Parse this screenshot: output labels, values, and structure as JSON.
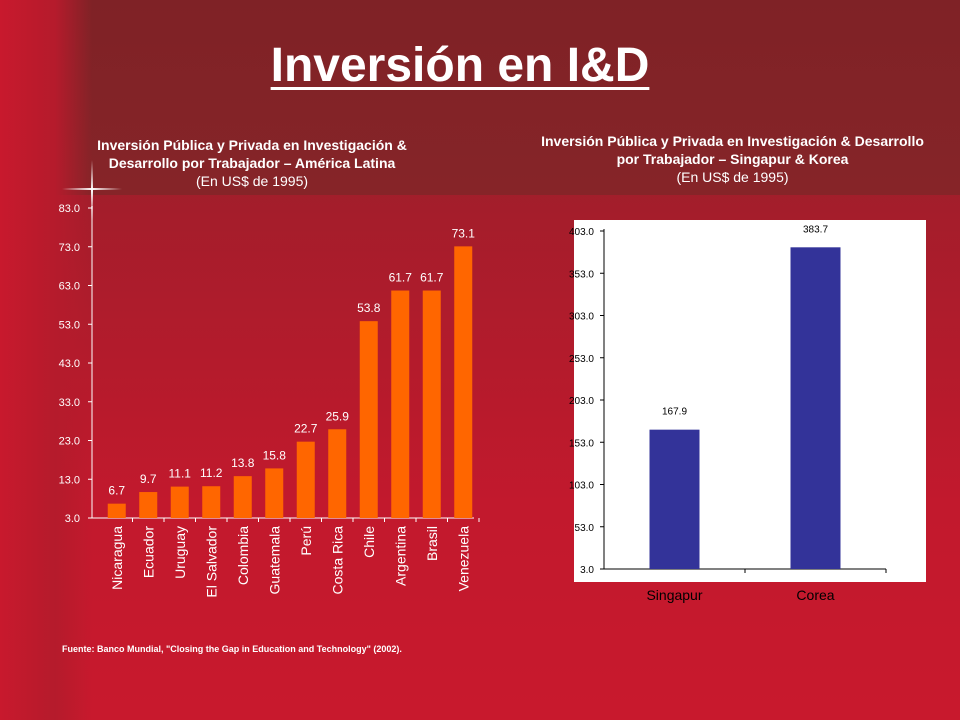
{
  "page_title": "Inversión en I&D",
  "source": "Fuente: Banco Mundial, \"Closing the Gap in Education and Technology\" (2002).",
  "colors": {
    "latam_bar": "#ff6600",
    "asia_bar": "#333399",
    "text_light": "#ffffff",
    "text_dark": "#000000"
  },
  "chart_data": [
    {
      "type": "bar",
      "title": "Inversión Pública y Privada en Investigación & Desarrollo por Trabajador – América Latina",
      "subtitle": "(En US$ de 1995)",
      "categories": [
        "Nicaragua",
        "Ecuador",
        "Uruguay",
        "El Salvador",
        "Colombia",
        "Guatemala",
        "Perú",
        "Costa Rica",
        "Chile",
        "Argentina",
        "Brasil",
        "Venezuela"
      ],
      "values": [
        6.7,
        9.7,
        11.1,
        11.2,
        13.8,
        15.8,
        22.7,
        25.9,
        53.8,
        61.7,
        61.7,
        73.1
      ],
      "data_labels": [
        "6.7",
        "9.7",
        "11.1",
        "11.2",
        "13.8",
        "15.8",
        "22.7",
        "25.9",
        "53.8",
        "61.7",
        "61.7",
        "73.1"
      ],
      "yticks": [
        "3.0",
        "13.0",
        "23.0",
        "33.0",
        "43.0",
        "53.0",
        "63.0",
        "73.0",
        "83.0"
      ],
      "ylim": [
        3,
        83
      ],
      "xlabel": "",
      "ylabel": "",
      "grid": false
    },
    {
      "type": "bar",
      "title": "Inversión Pública y Privada en Investigación & Desarrollo por Trabajador – Singapur & Korea",
      "subtitle": "(En US$ de 1995)",
      "categories": [
        "Singapur",
        "Corea"
      ],
      "values": [
        167.9,
        383.7
      ],
      "data_labels": [
        "167.9",
        "383.7"
      ],
      "yticks": [
        "3.0",
        "53.0",
        "103.0",
        "153.0",
        "203.0",
        "253.0",
        "303.0",
        "353.0",
        "403.0"
      ],
      "ylim": [
        3,
        403
      ],
      "xlabel": "",
      "ylabel": "",
      "grid": false
    }
  ]
}
